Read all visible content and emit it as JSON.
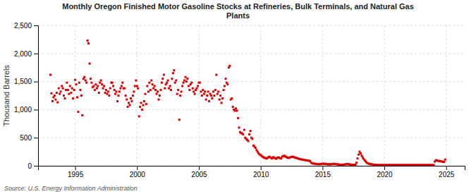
{
  "chart_data": {
    "type": "scatter",
    "title": "Monthly Oregon Finished Motor Gasoline Stocks at Refineries, Bulk Terminals, and Natural Gas\nPlants",
    "y_label": "Thousand Barrels",
    "annotations": [
      "Source: U.S. Energy Information Administration"
    ],
    "color": "#dd0000",
    "marker": "square",
    "grid": true,
    "xlim": [
      1992.0,
      2026.5
    ],
    "xticks": [
      1995,
      2000,
      2005,
      2010,
      2015,
      2020,
      2025
    ],
    "ylim": [
      0,
      2500
    ],
    "yticks": [
      0,
      500,
      {
        "value": 1000,
        "label": "1,000"
      },
      {
        "value": 1500,
        "label": "1,500"
      },
      {
        "value": 2000,
        "label": "2,000"
      },
      {
        "value": 2500,
        "label": "2,500"
      }
    ],
    "x": [
      1993.0,
      1993.08,
      1993.17,
      1993.25,
      1993.33,
      1993.42,
      1993.5,
      1993.58,
      1993.67,
      1993.75,
      1993.83,
      1993.92,
      1994.0,
      1994.08,
      1994.17,
      1994.25,
      1994.33,
      1994.42,
      1994.5,
      1994.58,
      1994.67,
      1994.75,
      1994.83,
      1994.92,
      1995.0,
      1995.08,
      1995.17,
      1995.25,
      1995.33,
      1995.42,
      1995.5,
      1995.58,
      1995.67,
      1995.75,
      1995.83,
      1995.92,
      1996.0,
      1996.08,
      1996.17,
      1996.25,
      1996.33,
      1996.42,
      1996.5,
      1996.58,
      1996.67,
      1996.75,
      1996.83,
      1996.92,
      1997.0,
      1997.08,
      1997.17,
      1997.25,
      1997.33,
      1997.42,
      1997.5,
      1997.58,
      1997.67,
      1997.75,
      1997.83,
      1997.92,
      1998.0,
      1998.08,
      1998.17,
      1998.25,
      1998.33,
      1998.42,
      1998.5,
      1998.58,
      1998.67,
      1998.75,
      1998.83,
      1998.92,
      1999.0,
      1999.08,
      1999.17,
      1999.25,
      1999.33,
      1999.42,
      1999.5,
      1999.58,
      1999.67,
      1999.75,
      1999.83,
      1999.92,
      2000.0,
      2000.08,
      2000.17,
      2000.25,
      2000.33,
      2000.42,
      2000.5,
      2000.58,
      2000.67,
      2000.75,
      2000.83,
      2000.92,
      2001.0,
      2001.08,
      2001.17,
      2001.25,
      2001.33,
      2001.42,
      2001.5,
      2001.58,
      2001.67,
      2001.75,
      2001.83,
      2001.92,
      2002.0,
      2002.08,
      2002.17,
      2002.25,
      2002.33,
      2002.42,
      2002.5,
      2002.58,
      2002.67,
      2002.75,
      2002.83,
      2002.92,
      2003.0,
      2003.08,
      2003.17,
      2003.25,
      2003.33,
      2003.42,
      2003.5,
      2003.58,
      2003.67,
      2003.75,
      2003.83,
      2003.92,
      2004.0,
      2004.08,
      2004.17,
      2004.25,
      2004.33,
      2004.42,
      2004.5,
      2004.58,
      2004.67,
      2004.75,
      2004.83,
      2004.92,
      2005.0,
      2005.08,
      2005.17,
      2005.25,
      2005.33,
      2005.42,
      2005.5,
      2005.58,
      2005.67,
      2005.75,
      2005.83,
      2005.92,
      2006.0,
      2006.08,
      2006.17,
      2006.25,
      2006.33,
      2006.42,
      2006.5,
      2006.58,
      2006.67,
      2006.75,
      2006.83,
      2006.92,
      2007.0,
      2007.08,
      2007.17,
      2007.25,
      2007.33,
      2007.42,
      2007.5,
      2007.58,
      2007.67,
      2007.75,
      2007.83,
      2007.92,
      2008.0,
      2008.08,
      2008.17,
      2008.25,
      2008.33,
      2008.42,
      2008.5,
      2008.58,
      2008.67,
      2008.75,
      2008.83,
      2008.92,
      2009.0,
      2009.08,
      2009.17,
      2009.25,
      2009.33,
      2009.42,
      2009.5,
      2009.58,
      2009.67,
      2009.75,
      2009.83,
      2009.92,
      2010.0,
      2010.08,
      2010.17,
      2010.25,
      2010.33,
      2010.42,
      2010.5,
      2010.58,
      2010.67,
      2010.75,
      2010.83,
      2010.92,
      2011.0,
      2011.08,
      2011.17,
      2011.25,
      2011.33,
      2011.42,
      2011.5,
      2011.58,
      2011.67,
      2011.75,
      2011.83,
      2011.92,
      2012.0,
      2012.08,
      2012.17,
      2012.25,
      2012.33,
      2012.42,
      2012.5,
      2012.58,
      2012.67,
      2012.75,
      2012.83,
      2012.92,
      2013.0,
      2013.08,
      2013.17,
      2013.25,
      2013.33,
      2013.42,
      2013.5,
      2013.58,
      2013.67,
      2013.75,
      2013.83,
      2013.92,
      2014.0,
      2014.08,
      2014.17,
      2014.25,
      2014.33,
      2014.42,
      2014.5,
      2014.58,
      2014.67,
      2014.75,
      2014.83,
      2014.92,
      2015.0,
      2015.08,
      2015.17,
      2015.25,
      2015.33,
      2015.42,
      2015.5,
      2015.58,
      2015.67,
      2015.75,
      2015.83,
      2015.92,
      2016.0,
      2016.08,
      2016.17,
      2016.25,
      2016.33,
      2016.42,
      2016.5,
      2016.58,
      2016.67,
      2016.75,
      2016.83,
      2016.92,
      2017.0,
      2017.08,
      2017.17,
      2017.25,
      2017.33,
      2017.42,
      2017.5,
      2017.58,
      2017.67,
      2017.75,
      2017.83,
      2017.92,
      2018.0,
      2018.08,
      2018.17,
      2018.25,
      2018.33,
      2018.42,
      2018.5,
      2018.58,
      2018.67,
      2018.75,
      2018.83,
      2018.92,
      2019.0,
      2019.08,
      2019.17,
      2019.25,
      2019.33,
      2019.42,
      2019.5,
      2019.58,
      2019.67,
      2019.75,
      2019.83,
      2019.92,
      2020.0,
      2020.08,
      2020.17,
      2020.25,
      2020.33,
      2020.42,
      2020.5,
      2020.58,
      2020.67,
      2020.75,
      2020.83,
      2020.92,
      2021.0,
      2021.08,
      2021.17,
      2021.25,
      2021.33,
      2021.42,
      2021.5,
      2021.58,
      2021.67,
      2021.75,
      2021.83,
      2021.92,
      2022.0,
      2022.08,
      2022.17,
      2022.25,
      2022.33,
      2022.42,
      2022.5,
      2022.58,
      2022.67,
      2022.75,
      2022.83,
      2022.92,
      2023.0,
      2023.08,
      2023.17,
      2023.25,
      2023.33,
      2023.42,
      2023.5,
      2023.58,
      2023.67,
      2023.75,
      2023.83,
      2023.92,
      2024.0,
      2024.08,
      2024.17,
      2024.25,
      2024.33,
      2024.42,
      2024.5,
      2024.58,
      2024.67,
      2024.75,
      2024.83,
      2024.92
    ],
    "values": [
      1620,
      1290,
      1150,
      1220,
      1250,
      1180,
      1300,
      1130,
      1380,
      1280,
      1320,
      1420,
      1380,
      1250,
      1200,
      1350,
      1480,
      1350,
      1280,
      1420,
      1300,
      1380,
      1200,
      1350,
      1530,
      1450,
      1220,
      960,
      1480,
      1350,
      1250,
      900,
      1550,
      1580,
      1520,
      1480,
      2230,
      2180,
      1820,
      1550,
      1480,
      1400,
      1420,
      1350,
      1450,
      1380,
      1420,
      1300,
      1480,
      1520,
      1450,
      1380,
      1420,
      1300,
      1350,
      1280,
      1320,
      1250,
      1380,
      1480,
      1480,
      1420,
      1350,
      1280,
      1320,
      1150,
      1250,
      1320,
      1380,
      1420,
      1480,
      1380,
      1380,
      1250,
      1180,
      1050,
      1120,
      1080,
      1200,
      1150,
      1250,
      1320,
      1420,
      1520,
      1420,
      1380,
      880,
      1050,
      1120,
      1000,
      1080,
      1150,
      1280,
      1100,
      1420,
      1320,
      1480,
      1350,
      1520,
      1450,
      1380,
      1420,
      1350,
      1280,
      1320,
      1180,
      1250,
      1350,
      1480,
      1550,
      1620,
      1380,
      1450,
      1480,
      1520,
      1380,
      1420,
      1350,
      1550,
      1650,
      1700,
      1480,
      1520,
      1280,
      1350,
      820,
      1250,
      1320,
      1420,
      1480,
      1520,
      1580,
      1500,
      1550,
      1420,
      1350,
      1450,
      1480,
      1380,
      1320,
      1280,
      1350,
      1380,
      1420,
      1480,
      1480,
      1320,
      1250,
      1350,
      1280,
      1320,
      1180,
      1250,
      1320,
      1150,
      1280,
      1250,
      1200,
      1320,
      1250,
      1350,
      1620,
      1280,
      1320,
      1180,
      1250,
      1120,
      1200,
      1350,
      1420,
      1550,
      1480,
      1450,
      1750,
      1780,
      1180,
      1200,
      1050,
      1000,
      980,
      1020,
      980,
      850,
      680,
      600,
      580,
      580,
      560,
      640,
      500,
      480,
      460,
      440,
      560,
      620,
      500,
      480,
      360,
      340,
      320,
      280,
      250,
      220,
      200,
      190,
      175,
      160,
      148,
      140,
      135,
      130,
      145,
      160,
      155,
      140,
      130,
      155,
      145,
      135,
      125,
      140,
      150,
      145,
      135,
      130,
      165,
      170,
      180,
      165,
      155,
      145,
      138,
      148,
      152,
      158,
      162,
      155,
      148,
      142,
      138,
      130,
      125,
      120,
      115,
      112,
      108,
      105,
      100,
      98,
      95,
      92,
      88,
      85,
      55,
      45,
      40,
      38,
      35,
      32,
      30,
      28,
      28,
      30,
      33,
      35,
      38,
      35,
      32,
      30,
      28,
      26,
      25,
      28,
      30,
      32,
      35,
      33,
      30,
      28,
      25,
      22,
      20,
      18,
      18,
      20,
      22,
      25,
      28,
      30,
      28,
      25,
      22,
      20,
      18,
      16,
      16,
      18,
      55,
      130,
      200,
      250,
      220,
      180,
      150,
      120,
      95,
      75,
      55,
      45,
      38,
      32,
      28,
      25,
      22,
      20,
      18,
      16,
      15,
      14,
      13,
      13,
      13,
      13,
      13,
      13,
      13,
      13,
      13,
      13,
      13,
      13,
      13,
      13,
      13,
      13,
      13,
      13,
      13,
      13,
      13,
      13,
      13,
      13,
      13,
      13,
      13,
      13,
      13,
      13,
      13,
      13,
      13,
      13,
      13,
      13,
      13,
      13,
      13,
      13,
      13,
      13,
      13,
      13,
      13,
      13,
      13,
      13,
      13,
      13,
      13,
      13,
      13,
      13,
      75,
      100,
      95,
      90,
      85,
      82,
      78,
      75,
      72,
      68,
      110
    ]
  }
}
